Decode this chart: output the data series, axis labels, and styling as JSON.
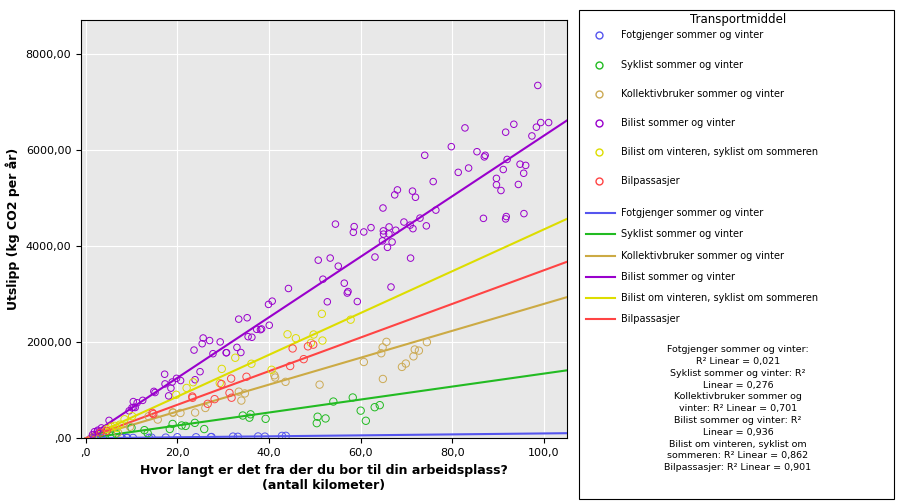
{
  "xlabel": "Hvor langt er det fra der du bor til din arbeidsplass?\n(antall kilometer)",
  "ylabel": "Utslipp (kg CO2 per år)",
  "xlim": [
    -1,
    105
  ],
  "ylim": [
    0,
    8700
  ],
  "xticks": [
    0,
    20,
    40,
    60,
    80,
    100
  ],
  "yticks": [
    0,
    2000,
    4000,
    6000,
    8000
  ],
  "xtick_labels": [
    ",0",
    "20,0",
    "40,0",
    "60,0",
    "80,0",
    "100,0"
  ],
  "ytick_labels": [
    ",00",
    "2000,00",
    "4000,00",
    "6000,00",
    "8000,00"
  ],
  "background_color": "#e8e8e8",
  "legend_title": "Transportmiddel",
  "fig_width": 9.0,
  "fig_height": 5.04,
  "scatter_groups": [
    {
      "name": "Fotgjenger sommer og vinter",
      "color": "#5555ee",
      "n": 20,
      "x_max": 45,
      "slope": 1.2,
      "noise": 0.5,
      "marker_size": 28
    },
    {
      "name": "Syklist sommer og vinter",
      "color": "#22bb22",
      "n": 25,
      "x_max": 65,
      "slope": 11.0,
      "noise": 1.2,
      "marker_size": 28
    },
    {
      "name": "Kollektivbruker sommer og vinter",
      "color": "#ccaa55",
      "n": 28,
      "x_max": 80,
      "slope": 27.0,
      "noise": 0.7,
      "marker_size": 28
    },
    {
      "name": "Bilist sommer og vinter",
      "color": "#9900cc",
      "n": 110,
      "x_max": 102,
      "slope": 63.0,
      "noise": 0.5,
      "marker_size": 22
    },
    {
      "name": "Bilist om vinteren, syklist om sommeren",
      "color": "#dddd00",
      "n": 22,
      "x_max": 65,
      "slope": 43.0,
      "noise": 0.5,
      "marker_size": 28
    },
    {
      "name": "Bilpassasjer",
      "color": "#ff4444",
      "n": 18,
      "x_max": 50,
      "slope": 35.0,
      "noise": 0.5,
      "marker_size": 28
    }
  ],
  "trend_lines": [
    {
      "name": "Fotgjenger sommer og vinter",
      "color": "#5555ee",
      "slope": 1.0,
      "intercept": 5
    },
    {
      "name": "Syklist sommer og vinter",
      "color": "#22bb22",
      "slope": 13.5,
      "intercept": 0
    },
    {
      "name": "Kollektivbruker sommer og vinter",
      "color": "#ccaa44",
      "slope": 28.0,
      "intercept": 0
    },
    {
      "name": "Bilist sommer og vinter",
      "color": "#9900cc",
      "slope": 63.0,
      "intercept": 0
    },
    {
      "name": "Bilist om vinteren, syklist om sommeren",
      "color": "#dddd00",
      "slope": 43.5,
      "intercept": 0
    },
    {
      "name": "Bilpassasjer",
      "color": "#ff4444",
      "slope": 35.0,
      "intercept": 0
    }
  ],
  "legend_scatter_names": [
    "Fotgjenger sommer og vinter",
    "Syklist sommer og vinter",
    "Kollektivbruker sommer og vinter",
    "Bilist sommer og vinter",
    "Bilist om vinteren, syklist om sommeren",
    "Bilpassasjer"
  ],
  "legend_line_names": [
    "Fotgjenger sommer og vinter",
    "Syklist sommer og vinter",
    "Kollektivbruker sommer og vinter",
    "Bilist sommer og vinter",
    "Bilist om vinteren, syklist om sommeren",
    "Bilpassasjer"
  ],
  "r2_lines": [
    "Fotgjenger sommer og vinter:",
    "R² Linear = 0,021",
    "Syklist sommer og vinter: R²",
    "Linear = 0,276",
    "Kollektivbruker sommer og",
    "vinter: R² Linear = 0,701",
    "Bilist sommer og vinter: R²",
    "Linear = 0,936",
    "Bilist om vinteren, syklist om",
    "sommeren: R² Linear = 0,862",
    "Bilpassasjer: R² Linear = 0,901"
  ]
}
